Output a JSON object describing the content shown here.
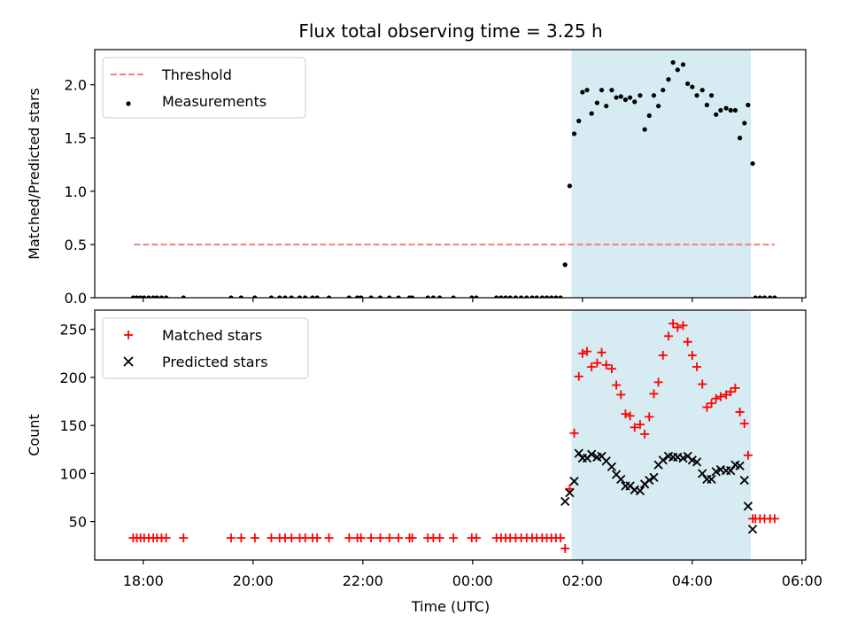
{
  "figure": {
    "title": "Flux total observing time = 3.25 h",
    "xlabel": "Time (UTC)"
  },
  "chart_data": [
    {
      "type": "scatter",
      "ylabel": "Matched/Predicted stars",
      "xlim": [
        "17:07",
        "06:04"
      ],
      "ylim": [
        0,
        2.33
      ],
      "yticks": [
        0.0,
        0.5,
        1.0,
        1.5,
        2.0
      ],
      "ytick_labels": [
        "0.0",
        "0.5",
        "1.0",
        "1.5",
        "2.0"
      ],
      "legend": "top-left",
      "shaded_span": {
        "x": [
          "01:48",
          "05:04"
        ],
        "color": "#add8e6"
      },
      "threshold": {
        "name": "Threshold",
        "y": 0.5,
        "x": [
          "17:50",
          "05:30"
        ],
        "color": "#f08080",
        "style": "dashed"
      },
      "series": [
        {
          "name": "Measurements",
          "marker": "dot",
          "color": "#000000",
          "points": [
            [
              "17:49",
              0
            ],
            [
              "17:53",
              0
            ],
            [
              "17:57",
              0
            ],
            [
              "18:01",
              0
            ],
            [
              "18:06",
              0
            ],
            [
              "18:11",
              0
            ],
            [
              "18:15",
              0
            ],
            [
              "18:20",
              0
            ],
            [
              "18:25",
              0
            ],
            [
              "18:44",
              0
            ],
            [
              "19:36",
              0
            ],
            [
              "19:47",
              0
            ],
            [
              "20:02",
              0
            ],
            [
              "20:20",
              0
            ],
            [
              "20:29",
              0
            ],
            [
              "20:35",
              0
            ],
            [
              "20:42",
              0
            ],
            [
              "20:51",
              0
            ],
            [
              "20:57",
              0
            ],
            [
              "21:05",
              0
            ],
            [
              "21:10",
              0
            ],
            [
              "21:23",
              0
            ],
            [
              "21:45",
              0
            ],
            [
              "21:54",
              0
            ],
            [
              "21:58",
              0
            ],
            [
              "22:09",
              0
            ],
            [
              "22:19",
              0
            ],
            [
              "22:29",
              0
            ],
            [
              "22:39",
              0
            ],
            [
              "22:51",
              0
            ],
            [
              "22:54",
              0
            ],
            [
              "23:11",
              0
            ],
            [
              "23:17",
              0
            ],
            [
              "23:24",
              0
            ],
            [
              "23:39",
              0
            ],
            [
              "23:59",
              0
            ],
            [
              "00:04",
              0
            ],
            [
              "00:26",
              0
            ],
            [
              "00:31",
              0
            ],
            [
              "00:36",
              0
            ],
            [
              "00:41",
              0
            ],
            [
              "00:47",
              0
            ],
            [
              "00:53",
              0
            ],
            [
              "00:59",
              0
            ],
            [
              "01:05",
              0
            ],
            [
              "01:10",
              0
            ],
            [
              "01:16",
              0
            ],
            [
              "01:21",
              0
            ],
            [
              "01:26",
              0
            ],
            [
              "01:31",
              0
            ],
            [
              "01:36",
              0
            ],
            [
              "01:41",
              0.31
            ],
            [
              "01:46",
              1.05
            ],
            [
              "01:51",
              1.54
            ],
            [
              "01:56",
              1.66
            ],
            [
              "02:00",
              1.93
            ],
            [
              "02:05",
              1.95
            ],
            [
              "02:10",
              1.73
            ],
            [
              "02:16",
              1.83
            ],
            [
              "02:21",
              1.95
            ],
            [
              "02:26",
              1.8
            ],
            [
              "02:32",
              1.95
            ],
            [
              "02:37",
              1.88
            ],
            [
              "02:42",
              1.89
            ],
            [
              "02:47",
              1.86
            ],
            [
              "02:52",
              1.88
            ],
            [
              "02:57",
              1.84
            ],
            [
              "03:03",
              1.9
            ],
            [
              "03:08",
              1.58
            ],
            [
              "03:13",
              1.71
            ],
            [
              "03:18",
              1.9
            ],
            [
              "03:23",
              1.8
            ],
            [
              "03:28",
              1.95
            ],
            [
              "03:34",
              2.05
            ],
            [
              "03:39",
              2.21
            ],
            [
              "03:44",
              2.14
            ],
            [
              "03:50",
              2.19
            ],
            [
              "03:55",
              2.01
            ],
            [
              "04:00",
              1.98
            ],
            [
              "04:05",
              1.9
            ],
            [
              "04:11",
              1.95
            ],
            [
              "04:16",
              1.81
            ],
            [
              "04:21",
              1.9
            ],
            [
              "04:26",
              1.72
            ],
            [
              "04:31",
              1.76
            ],
            [
              "04:37",
              1.78
            ],
            [
              "04:42",
              1.76
            ],
            [
              "04:47",
              1.76
            ],
            [
              "04:52",
              1.5
            ],
            [
              "04:57",
              1.64
            ],
            [
              "05:01",
              1.81
            ],
            [
              "05:06",
              1.26
            ],
            [
              "05:09",
              0
            ],
            [
              "05:14",
              0
            ],
            [
              "05:19",
              0
            ],
            [
              "05:25",
              0
            ],
            [
              "05:30",
              0
            ]
          ]
        }
      ]
    },
    {
      "type": "scatter",
      "ylabel": "Count",
      "xlim": [
        "17:07",
        "06:04"
      ],
      "ylim": [
        10,
        270
      ],
      "yticks": [
        50,
        100,
        150,
        200,
        250
      ],
      "ytick_labels": [
        "50",
        "100",
        "150",
        "200",
        "250"
      ],
      "xticks": [
        "18:00",
        "20:00",
        "22:00",
        "00:00",
        "02:00",
        "04:00",
        "06:00"
      ],
      "xtick_labels": [
        "18:00",
        "20:00",
        "22:00",
        "00:00",
        "02:00",
        "04:00",
        "06:00"
      ],
      "legend": "top-left",
      "shaded_span": {
        "x": [
          "01:48",
          "05:04"
        ],
        "color": "#add8e6"
      },
      "series": [
        {
          "name": "Matched stars",
          "marker": "plus",
          "color": "#ff0000",
          "points": [
            [
              "17:49",
              33
            ],
            [
              "17:53",
              33
            ],
            [
              "17:57",
              33
            ],
            [
              "18:01",
              33
            ],
            [
              "18:06",
              33
            ],
            [
              "18:11",
              33
            ],
            [
              "18:15",
              33
            ],
            [
              "18:20",
              33
            ],
            [
              "18:25",
              33
            ],
            [
              "18:44",
              33
            ],
            [
              "19:36",
              33
            ],
            [
              "19:47",
              33
            ],
            [
              "20:02",
              33
            ],
            [
              "20:20",
              33
            ],
            [
              "20:29",
              33
            ],
            [
              "20:35",
              33
            ],
            [
              "20:42",
              33
            ],
            [
              "20:51",
              33
            ],
            [
              "20:57",
              33
            ],
            [
              "21:05",
              33
            ],
            [
              "21:10",
              33
            ],
            [
              "21:23",
              33
            ],
            [
              "21:45",
              33
            ],
            [
              "21:54",
              33
            ],
            [
              "21:58",
              33
            ],
            [
              "22:09",
              33
            ],
            [
              "22:19",
              33
            ],
            [
              "22:29",
              33
            ],
            [
              "22:39",
              33
            ],
            [
              "22:51",
              33
            ],
            [
              "22:54",
              33
            ],
            [
              "23:11",
              33
            ],
            [
              "23:17",
              33
            ],
            [
              "23:24",
              33
            ],
            [
              "23:39",
              33
            ],
            [
              "23:59",
              33
            ],
            [
              "00:04",
              33
            ],
            [
              "00:26",
              33
            ],
            [
              "00:31",
              33
            ],
            [
              "00:36",
              33
            ],
            [
              "00:41",
              33
            ],
            [
              "00:47",
              33
            ],
            [
              "00:53",
              33
            ],
            [
              "00:59",
              33
            ],
            [
              "01:05",
              33
            ],
            [
              "01:10",
              33
            ],
            [
              "01:16",
              33
            ],
            [
              "01:21",
              33
            ],
            [
              "01:26",
              33
            ],
            [
              "01:31",
              33
            ],
            [
              "01:36",
              33
            ],
            [
              "01:41",
              22
            ],
            [
              "01:46",
              84
            ],
            [
              "01:51",
              142
            ],
            [
              "01:56",
              201
            ],
            [
              "02:00",
              225
            ],
            [
              "02:05",
              227
            ],
            [
              "02:10",
              211
            ],
            [
              "02:16",
              215
            ],
            [
              "02:21",
              226
            ],
            [
              "02:26",
              213
            ],
            [
              "02:32",
              209
            ],
            [
              "02:37",
              192
            ],
            [
              "02:42",
              182
            ],
            [
              "02:47",
              162
            ],
            [
              "02:52",
              160
            ],
            [
              "02:57",
              148
            ],
            [
              "03:03",
              151
            ],
            [
              "03:08",
              141
            ],
            [
              "03:13",
              159
            ],
            [
              "03:18",
              183
            ],
            [
              "03:23",
              195
            ],
            [
              "03:28",
              223
            ],
            [
              "03:34",
              243
            ],
            [
              "03:39",
              256
            ],
            [
              "03:44",
              252
            ],
            [
              "03:50",
              254
            ],
            [
              "03:55",
              237
            ],
            [
              "04:00",
              223
            ],
            [
              "04:05",
              211
            ],
            [
              "04:11",
              193
            ],
            [
              "04:16",
              169
            ],
            [
              "04:21",
              173
            ],
            [
              "04:26",
              178
            ],
            [
              "04:31",
              180
            ],
            [
              "04:37",
              182
            ],
            [
              "04:42",
              185
            ],
            [
              "04:47",
              189
            ],
            [
              "04:52",
              164
            ],
            [
              "04:57",
              152
            ],
            [
              "05:01",
              119
            ],
            [
              "05:06",
              53
            ],
            [
              "05:09",
              53
            ],
            [
              "05:14",
              53
            ],
            [
              "05:19",
              53
            ],
            [
              "05:25",
              53
            ],
            [
              "05:30",
              53
            ]
          ]
        },
        {
          "name": "Predicted stars",
          "marker": "x",
          "color": "#000000",
          "points": [
            [
              "01:41",
              71
            ],
            [
              "01:46",
              80
            ],
            [
              "01:51",
              92
            ],
            [
              "01:56",
              121
            ],
            [
              "02:00",
              116
            ],
            [
              "02:05",
              116
            ],
            [
              "02:10",
              120
            ],
            [
              "02:16",
              117
            ],
            [
              "02:21",
              118
            ],
            [
              "02:26",
              113
            ],
            [
              "02:32",
              107
            ],
            [
              "02:37",
              99
            ],
            [
              "02:42",
              94
            ],
            [
              "02:47",
              87
            ],
            [
              "02:52",
              87
            ],
            [
              "02:57",
              83
            ],
            [
              "03:03",
              82
            ],
            [
              "03:08",
              89
            ],
            [
              "03:13",
              93
            ],
            [
              "03:18",
              96
            ],
            [
              "03:23",
              109
            ],
            [
              "03:28",
              114
            ],
            [
              "03:34",
              118
            ],
            [
              "03:39",
              117
            ],
            [
              "03:44",
              117
            ],
            [
              "03:50",
              116
            ],
            [
              "03:55",
              118
            ],
            [
              "04:00",
              114
            ],
            [
              "04:05",
              112
            ],
            [
              "04:11",
              100
            ],
            [
              "04:16",
              94
            ],
            [
              "04:21",
              94
            ],
            [
              "04:26",
              102
            ],
            [
              "04:31",
              104
            ],
            [
              "04:37",
              103
            ],
            [
              "04:42",
              103
            ],
            [
              "04:47",
              109
            ],
            [
              "04:52",
              108
            ],
            [
              "04:57",
              93
            ],
            [
              "05:01",
              66
            ],
            [
              "05:06",
              42
            ]
          ]
        }
      ]
    }
  ]
}
